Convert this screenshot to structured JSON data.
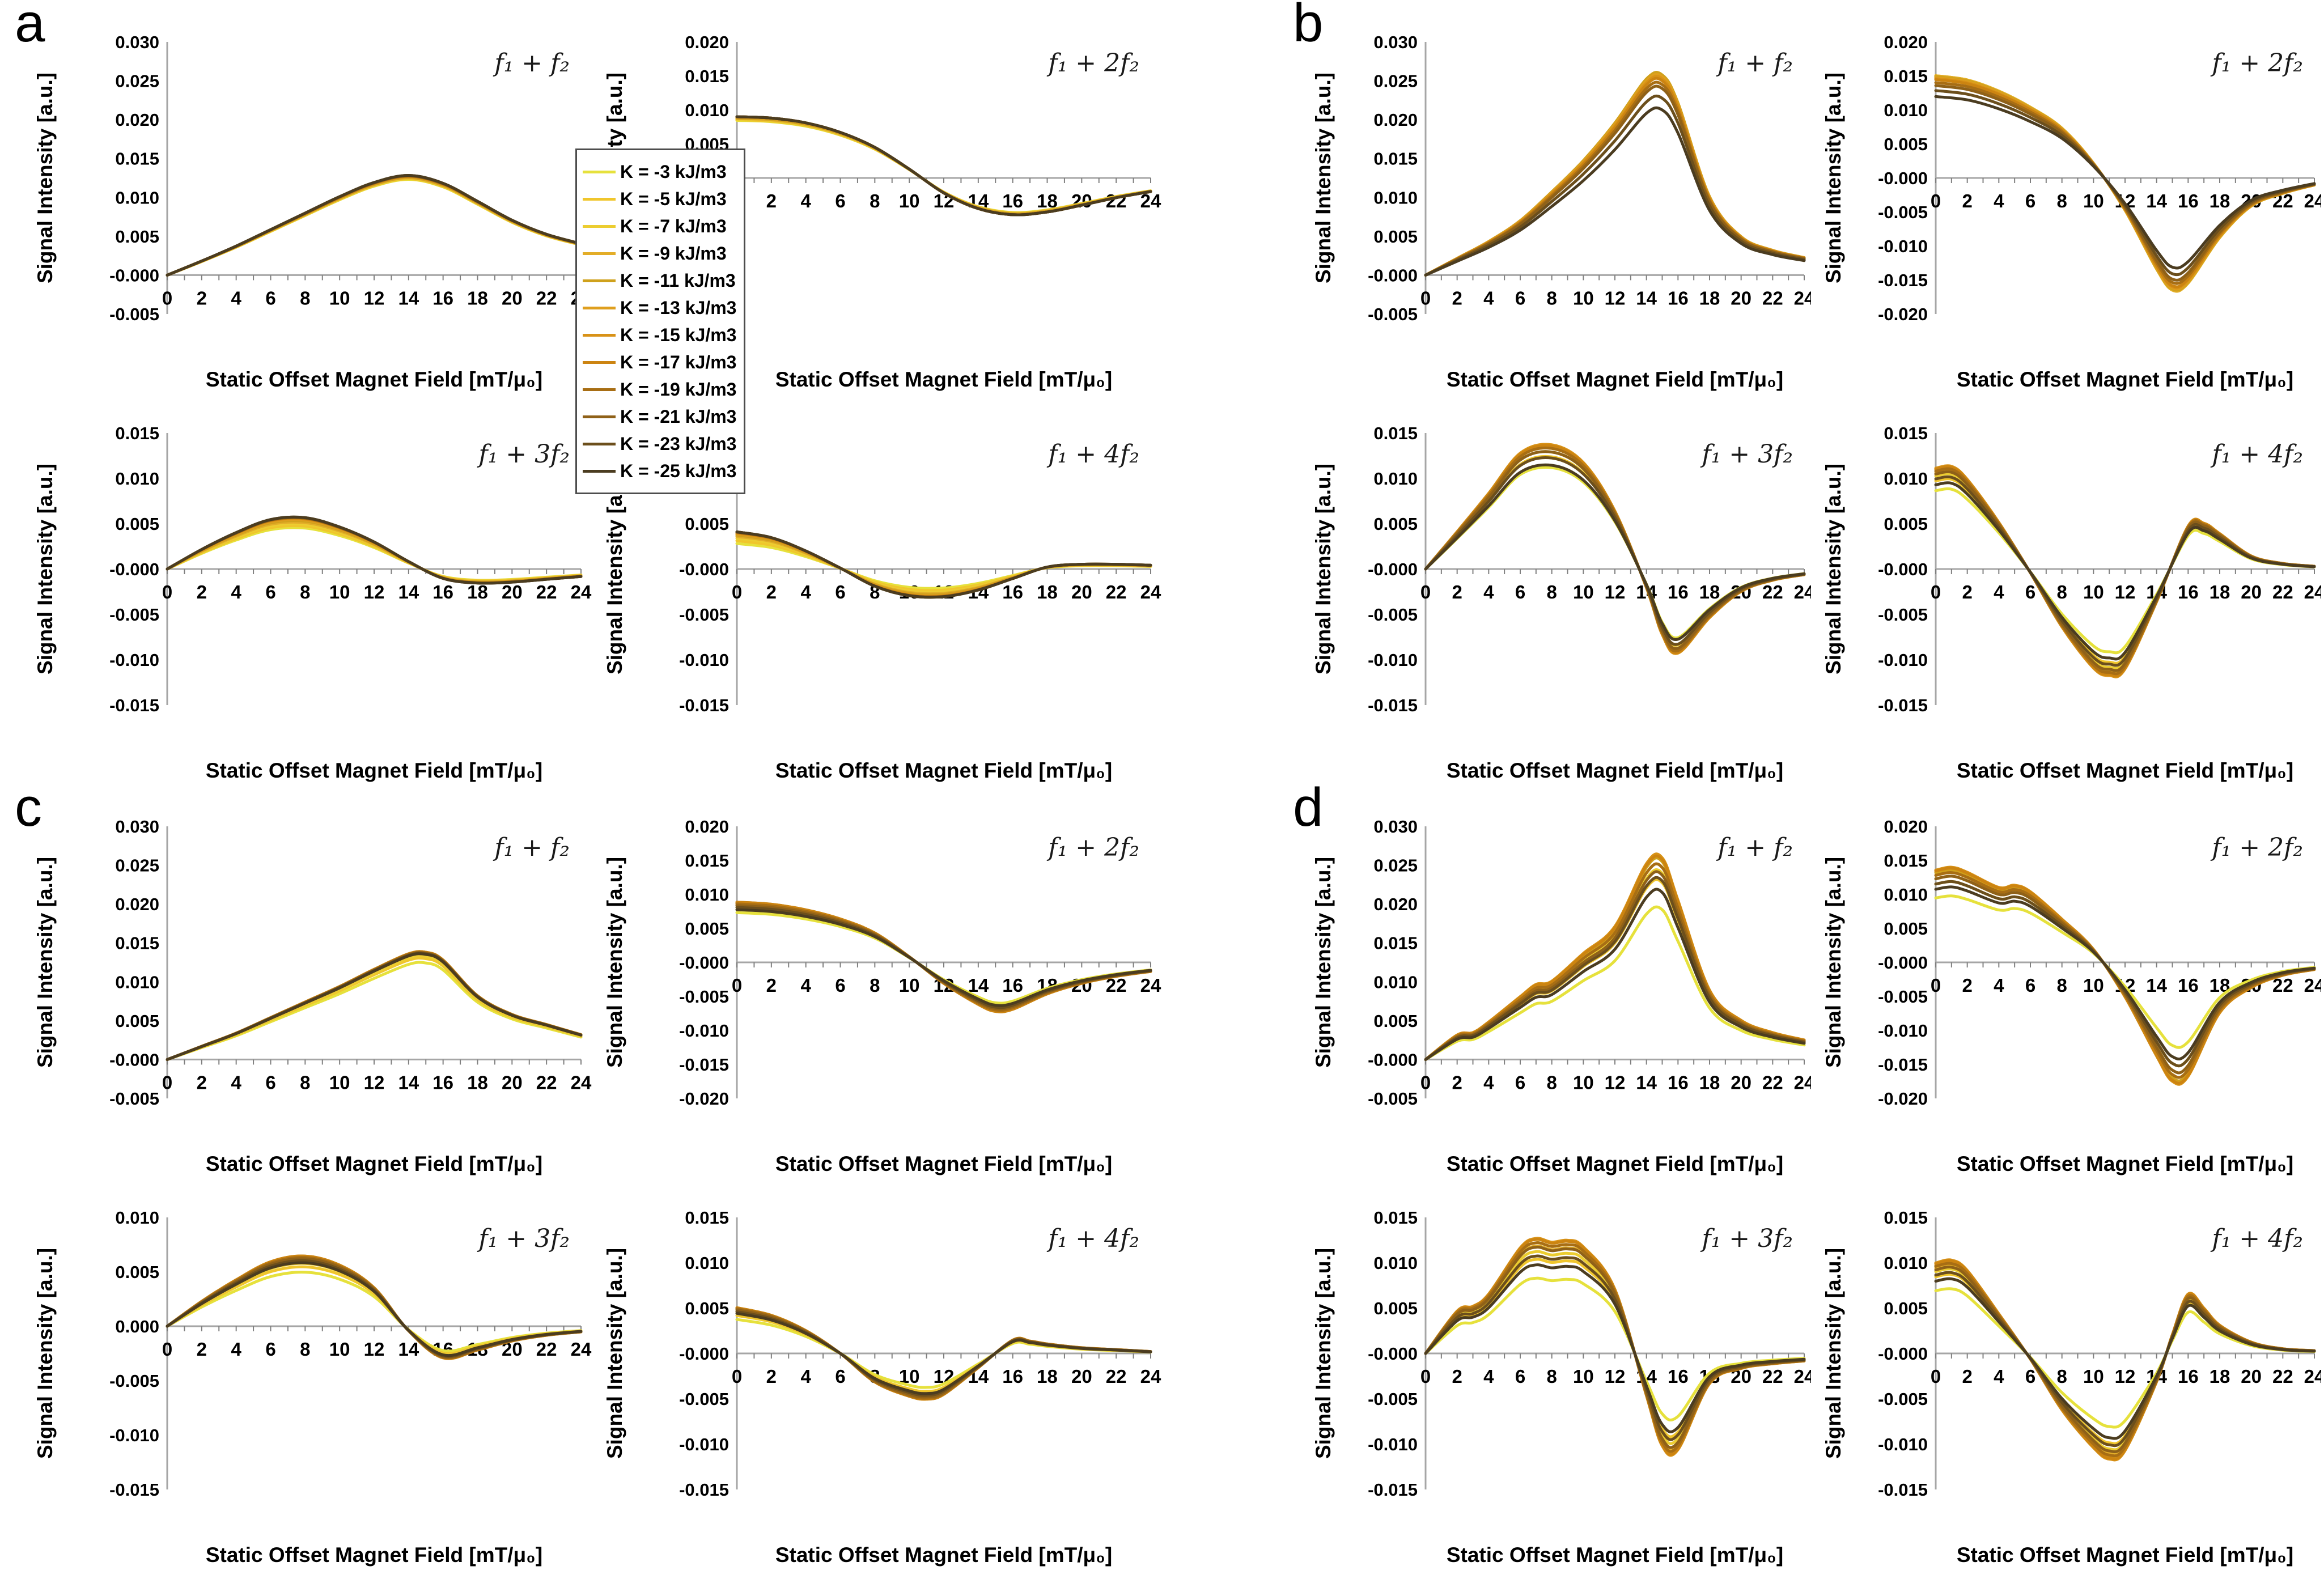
{
  "figure": {
    "background": "#ffffff"
  },
  "panels": [
    {
      "label": "a"
    },
    {
      "label": "b"
    },
    {
      "label": "c"
    },
    {
      "label": "d"
    }
  ],
  "axes": {
    "x_title": "Static Offset Magnet Field [mT/μ₀]",
    "y_title": "Signal Intensity [a.u.]",
    "x_min": 0,
    "x_max": 24,
    "x_label_step": 2,
    "x_minor_tick_step": 1,
    "y_tick_step": 0.005,
    "axis_line_color": "#a6a6a6",
    "tick_color": "#808080"
  },
  "legend": {
    "items": [
      {
        "label": "K = -3 kJ/m3",
        "color": "#e6e13c"
      },
      {
        "label": "K = -5 kJ/m3",
        "color": "#f0c62c"
      },
      {
        "label": "K = -7 kJ/m3",
        "color": "#eccd30"
      },
      {
        "label": "K = -9 kJ/m3",
        "color": "#e3ad28"
      },
      {
        "label": "K = -11 kJ/m3",
        "color": "#cfa11c"
      },
      {
        "label": "K = -13 kJ/m3",
        "color": "#df9f1e"
      },
      {
        "label": "K = -15 kJ/m3",
        "color": "#d89217"
      },
      {
        "label": "K = -17 kJ/m3",
        "color": "#cc8411"
      },
      {
        "label": "K = -19 kJ/m3",
        "color": "#a86e14"
      },
      {
        "label": "K = -21 kJ/m3",
        "color": "#8f6118"
      },
      {
        "label": "K = -23 kJ/m3",
        "color": "#6c4f1c"
      },
      {
        "label": "K = -25 kJ/m3",
        "color": "#4b3c20"
      }
    ]
  },
  "chart_data": [
    {
      "type": "line",
      "panel": "a",
      "slot": 0,
      "title": "f₁ + f₂",
      "ylim": [
        -0.005,
        0.03
      ],
      "x": [
        0,
        2,
        4,
        6,
        8,
        10,
        12,
        14,
        16,
        18,
        20,
        22,
        24
      ],
      "values": [
        0,
        0.0018,
        0.0037,
        0.0058,
        0.0079,
        0.01,
        0.0118,
        0.0127,
        0.0117,
        0.0094,
        0.007,
        0.0052,
        0.004
      ],
      "series_factors": [
        0.97,
        0.975,
        0.98,
        0.985,
        0.99,
        0.995,
        1.0,
        1.0,
        1.005,
        1.005,
        1.01,
        1.01
      ]
    },
    {
      "type": "line",
      "panel": "a",
      "slot": 1,
      "title": "f₁ + 2f₂",
      "ylim": [
        -0.02,
        0.02
      ],
      "x": [
        0,
        2,
        4,
        6,
        8,
        10,
        12,
        14,
        16,
        18,
        20,
        22,
        24
      ],
      "values": [
        0.009,
        0.0088,
        0.0081,
        0.0067,
        0.0045,
        0.0013,
        -0.0022,
        -0.0045,
        -0.0054,
        -0.005,
        -0.004,
        -0.0029,
        -0.002
      ],
      "series_factors": [
        0.94,
        0.95,
        0.96,
        0.97,
        0.98,
        0.99,
        1.0,
        1.0,
        1.0,
        1.0,
        1.0,
        1.0
      ]
    },
    {
      "type": "line",
      "panel": "a",
      "slot": 2,
      "title": "f₁ + 3f₂",
      "ylim": [
        -0.015,
        0.015
      ],
      "x": [
        0,
        2,
        4,
        6,
        8,
        10,
        12,
        14,
        16,
        18,
        20,
        22,
        24
      ],
      "values": [
        0,
        0.0021,
        0.0039,
        0.0053,
        0.0055,
        0.0045,
        0.0029,
        0.0008,
        -0.001,
        -0.0015,
        -0.0014,
        -0.0011,
        -0.0008
      ],
      "series_factors": [
        0.82,
        0.86,
        0.9,
        0.93,
        0.96,
        0.98,
        1.0,
        1.01,
        1.02,
        1.02,
        1.03,
        1.03
      ]
    },
    {
      "type": "line",
      "panel": "a",
      "slot": 3,
      "title": "f₁ + 4f₂",
      "ylim": [
        -0.015,
        0.015
      ],
      "x": [
        0,
        2,
        4,
        6,
        8,
        10,
        12,
        14,
        16,
        18,
        20,
        22,
        24
      ],
      "values": [
        0.0039,
        0.0033,
        0.0019,
        0.0001,
        -0.0018,
        -0.0028,
        -0.0029,
        -0.0022,
        -0.001,
        0.0002,
        0.0005,
        0.0005,
        0.0004
      ],
      "series_factors": [
        0.72,
        0.8,
        0.87,
        0.92,
        0.96,
        0.99,
        1.01,
        1.03,
        1.04,
        1.05,
        1.05,
        1.05
      ]
    },
    {
      "type": "line",
      "panel": "b",
      "slot": 0,
      "title": "f₁ + f₂",
      "ylim": [
        -0.005,
        0.03
      ],
      "x": [
        0,
        2,
        4,
        6,
        8,
        10,
        12,
        14,
        15,
        16,
        18,
        20,
        22,
        24
      ],
      "values": [
        0,
        0.0021,
        0.0042,
        0.0068,
        0.0104,
        0.0143,
        0.019,
        0.0245,
        0.025,
        0.0215,
        0.0098,
        0.0048,
        0.0031,
        0.0022
      ],
      "series_factors": [
        1.01,
        1.02,
        1.02,
        1.03,
        1.03,
        1.02,
        1.01,
        1.0,
        0.98,
        0.96,
        0.91,
        0.85
      ]
    },
    {
      "type": "line",
      "panel": "b",
      "slot": 1,
      "title": "f₁ + 2f₂",
      "ylim": [
        -0.02,
        0.02
      ],
      "x": [
        0,
        2,
        4,
        6,
        8,
        10,
        12,
        14,
        15,
        16,
        18,
        20,
        22,
        24
      ],
      "values": [
        0.0146,
        0.014,
        0.0124,
        0.0101,
        0.0071,
        0.0021,
        -0.0046,
        -0.013,
        -0.016,
        -0.015,
        -0.0085,
        -0.004,
        -0.0022,
        -0.001
      ],
      "series_factors": [
        1.02,
        1.03,
        1.03,
        1.03,
        1.02,
        1.01,
        1.0,
        0.99,
        0.96,
        0.93,
        0.88,
        0.82
      ]
    },
    {
      "type": "line",
      "panel": "b",
      "slot": 2,
      "title": "f₁ + 3f₂",
      "ylim": [
        -0.015,
        0.015
      ],
      "x": [
        0,
        2,
        4,
        6,
        8,
        10,
        12,
        14,
        15,
        16,
        18,
        20,
        22,
        24
      ],
      "values": [
        0,
        0.004,
        0.0081,
        0.0124,
        0.0133,
        0.0114,
        0.0062,
        -0.002,
        -0.007,
        -0.009,
        -0.0052,
        -0.0024,
        -0.0012,
        -0.0006
      ],
      "series_factors": [
        0.84,
        0.93,
        0.97,
        1.0,
        1.02,
        1.03,
        1.03,
        1.02,
        1.0,
        0.97,
        0.92,
        0.86
      ]
    },
    {
      "type": "line",
      "panel": "b",
      "slot": 3,
      "title": "f₁ + 4f₂",
      "ylim": [
        -0.015,
        0.015
      ],
      "x": [
        0,
        1,
        2,
        4,
        6,
        8,
        10,
        11,
        12,
        14,
        16,
        17,
        18,
        20,
        22,
        24
      ],
      "values": [
        0.0108,
        0.011,
        0.0096,
        0.005,
        -0.0004,
        -0.0062,
        -0.0106,
        -0.0114,
        -0.0107,
        -0.0035,
        0.0046,
        0.0049,
        0.0038,
        0.0014,
        0.0006,
        0.0003
      ],
      "series_factors": [
        0.8,
        0.9,
        0.95,
        0.98,
        1.0,
        1.02,
        1.03,
        1.02,
        1.0,
        0.97,
        0.92,
        0.86
      ]
    },
    {
      "type": "line",
      "panel": "c",
      "slot": 0,
      "title": "f₁ + f₂",
      "ylim": [
        -0.005,
        0.03
      ],
      "x": [
        0,
        2,
        4,
        6,
        8,
        10,
        12,
        14,
        15,
        16,
        18,
        20,
        22,
        24
      ],
      "values": [
        0,
        0.0017,
        0.0034,
        0.0054,
        0.0074,
        0.0094,
        0.0116,
        0.0136,
        0.0138,
        0.0128,
        0.0082,
        0.0058,
        0.0045,
        0.0032
      ],
      "series_factors": [
        0.9,
        0.94,
        0.96,
        0.98,
        0.99,
        1.0,
        1.0,
        1.0,
        0.995,
        0.99,
        0.985,
        0.98
      ]
    },
    {
      "type": "line",
      "panel": "c",
      "slot": 1,
      "title": "f₁ + 2f₂",
      "ylim": [
        -0.02,
        0.02
      ],
      "x": [
        0,
        2,
        4,
        6,
        8,
        10,
        12,
        14,
        15,
        16,
        18,
        20,
        22,
        24
      ],
      "values": [
        0.0086,
        0.0083,
        0.0075,
        0.0062,
        0.0042,
        0.0008,
        -0.003,
        -0.006,
        -0.007,
        -0.0067,
        -0.0045,
        -0.003,
        -0.002,
        -0.0013
      ],
      "series_factors": [
        0.85,
        0.9,
        0.94,
        0.97,
        1.0,
        1.02,
        1.03,
        1.03,
        1.0,
        0.97,
        0.94,
        0.9
      ]
    },
    {
      "type": "line",
      "panel": "c",
      "slot": 2,
      "title": "f₁ + 3f₂",
      "ylim": [
        -0.015,
        0.01
      ],
      "x": [
        0,
        2,
        4,
        6,
        8,
        10,
        12,
        14,
        16,
        18,
        20,
        22,
        24
      ],
      "values": [
        0,
        0.0022,
        0.0041,
        0.0057,
        0.0062,
        0.0054,
        0.0034,
        -0.0004,
        -0.0028,
        -0.0021,
        -0.0013,
        -0.0008,
        -0.0005
      ],
      "series_factors": [
        0.8,
        0.88,
        0.93,
        0.97,
        1.0,
        1.02,
        1.04,
        1.04,
        1.02,
        1.0,
        0.97,
        0.94
      ]
    },
    {
      "type": "line",
      "panel": "c",
      "slot": 3,
      "title": "f₁ + 4f₂",
      "ylim": [
        -0.015,
        0.015
      ],
      "x": [
        0,
        2,
        4,
        6,
        8,
        10,
        11,
        12,
        14,
        16,
        17,
        18,
        20,
        22,
        24
      ],
      "values": [
        0.0048,
        0.004,
        0.0024,
        0.0,
        -0.003,
        -0.0045,
        -0.0048,
        -0.0043,
        -0.0015,
        0.0014,
        0.0013,
        0.001,
        0.0006,
        0.0004,
        0.0002
      ],
      "series_factors": [
        0.78,
        0.87,
        0.92,
        0.96,
        1.0,
        1.03,
        1.05,
        1.05,
        1.03,
        1.0,
        0.96,
        0.92
      ]
    },
    {
      "type": "line",
      "panel": "d",
      "slot": 0,
      "title": "f₁ + f₂",
      "ylim": [
        -0.005,
        0.03
      ],
      "x": [
        0,
        2,
        3,
        4,
        6,
        7,
        8,
        10,
        12,
        14,
        15,
        16,
        18,
        20,
        22,
        24
      ],
      "values": [
        0,
        0.003,
        0.0033,
        0.0046,
        0.0077,
        0.0092,
        0.0096,
        0.013,
        0.0163,
        0.024,
        0.0247,
        0.0195,
        0.0085,
        0.0048,
        0.0033,
        0.0024
      ],
      "series_factors": [
        0.78,
        0.92,
        0.97,
        1.0,
        1.03,
        1.05,
        1.05,
        1.04,
        1.0,
        0.96,
        0.93,
        0.87
      ]
    },
    {
      "type": "line",
      "panel": "d",
      "slot": 1,
      "title": "f₁ + 2f₂",
      "ylim": [
        -0.02,
        0.02
      ],
      "x": [
        0,
        1,
        2,
        4,
        5,
        6,
        8,
        10,
        12,
        14,
        15,
        16,
        18,
        20,
        22,
        24
      ],
      "values": [
        0.0128,
        0.0132,
        0.0125,
        0.0104,
        0.0107,
        0.0098,
        0.006,
        0.0018,
        -0.0048,
        -0.013,
        -0.0165,
        -0.0158,
        -0.007,
        -0.0035,
        -0.0018,
        -0.001
      ],
      "series_factors": [
        0.74,
        0.9,
        0.96,
        1.0,
        1.03,
        1.05,
        1.06,
        1.05,
        1.0,
        0.96,
        0.9,
        0.84
      ]
    },
    {
      "type": "line",
      "panel": "d",
      "slot": 2,
      "title": "f₁ + 3f₂",
      "ylim": [
        -0.015,
        0.015
      ],
      "x": [
        0,
        2,
        3,
        4,
        6,
        7,
        8,
        9,
        10,
        12,
        14,
        15,
        16,
        18,
        20,
        22,
        24
      ],
      "values": [
        0,
        0.0045,
        0.005,
        0.0063,
        0.0112,
        0.0122,
        0.0118,
        0.012,
        0.0113,
        0.0068,
        -0.0045,
        -0.0098,
        -0.0102,
        -0.0032,
        -0.0016,
        -0.0011,
        -0.0008
      ],
      "series_factors": [
        0.68,
        0.85,
        0.92,
        0.97,
        1.0,
        1.03,
        1.04,
        1.03,
        1.0,
        0.96,
        0.88,
        0.8
      ]
    },
    {
      "type": "line",
      "panel": "d",
      "slot": 3,
      "title": "f₁ + 4f₂",
      "ylim": [
        -0.015,
        0.015
      ],
      "x": [
        0,
        1,
        2,
        4,
        6,
        8,
        10,
        11,
        12,
        14,
        15,
        16,
        17,
        18,
        20,
        22,
        24
      ],
      "values": [
        0.0096,
        0.0099,
        0.0088,
        0.0042,
        -0.0006,
        -0.006,
        -0.01,
        -0.0112,
        -0.0103,
        -0.003,
        0.002,
        0.0063,
        0.0048,
        0.003,
        0.0012,
        0.0005,
        0.0003
      ],
      "series_factors": [
        0.72,
        0.88,
        0.94,
        0.98,
        1.01,
        1.03,
        1.04,
        1.03,
        1.0,
        0.96,
        0.9,
        0.83
      ]
    }
  ]
}
